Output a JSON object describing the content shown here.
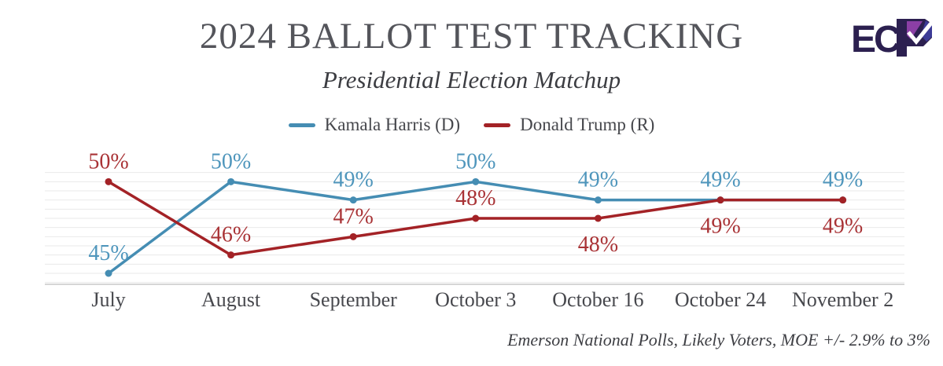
{
  "header": {
    "title": "2024 BALLOT TEST TRACKING",
    "subtitle": "Presidential Election Matchup"
  },
  "logo": {
    "text": "EC",
    "name": "ECP",
    "dark_color": "#2c2050",
    "violet_color": "#8b3fa5",
    "indigo_color": "#3d3b97"
  },
  "legend": {
    "items": [
      {
        "label": "Kamala Harris (D)",
        "color": "#458db3"
      },
      {
        "label": "Donald Trump (R)",
        "color": "#a32226"
      }
    ]
  },
  "chart_data": {
    "type": "line",
    "title": "2024 BALLOT TEST TRACKING",
    "subtitle": "Presidential Election Matchup",
    "categories": [
      "July",
      "August",
      "September",
      "October 3",
      "October 16",
      "October 24",
      "November 2"
    ],
    "series": [
      {
        "name": "Kamala Harris (D)",
        "color": "#458db3",
        "label_color": "#4f96bc",
        "values": [
          45,
          50,
          49,
          50,
          49,
          49,
          49
        ],
        "label_side": [
          "above",
          "above",
          "above",
          "above",
          "above",
          "above",
          "above"
        ]
      },
      {
        "name": "Donald Trump (R)",
        "color": "#a32226",
        "label_color": "#a93336",
        "values": [
          50,
          46,
          47,
          48,
          48,
          49,
          49
        ],
        "label_side": [
          "above",
          "above",
          "above",
          "above",
          "below",
          "below",
          "below"
        ]
      }
    ],
    "value_suffix": "%",
    "ylim": [
      44.4,
      51.0
    ],
    "grid": {
      "on": true,
      "min": 44.5,
      "max": 50.5,
      "step": 0.5
    },
    "xlabel": "",
    "ylabel": "",
    "legend_position": "top-center",
    "axis_labels_color": "#47484d"
  },
  "footer": {
    "source": "Emerson National Polls, Likely Voters, MOE +/- 2.9% to 3%"
  }
}
